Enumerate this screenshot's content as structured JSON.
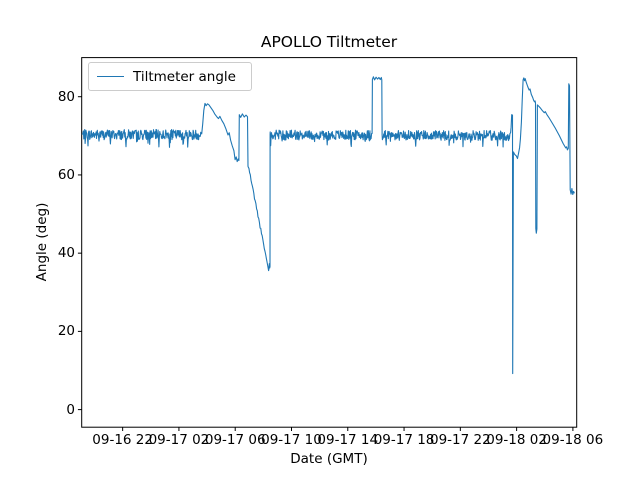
{
  "chart_data": {
    "type": "line",
    "title": "APOLLO Tiltmeter",
    "xlabel": "Date (GMT)",
    "ylabel": "Angle (deg)",
    "legend": {
      "position": "upper left",
      "entries": [
        {
          "label": "Tiltmeter angle",
          "color": "#1f77b4"
        }
      ]
    },
    "line_color": "#1f77b4",
    "background_color": "#ffffff",
    "grid": false,
    "xlim_hours": [
      0,
      35.18
    ],
    "ylim": [
      -4.5,
      90
    ],
    "yticks": [
      0,
      20,
      40,
      60,
      80
    ],
    "xticks": [
      {
        "hour": 2.91,
        "label": "09-16 22"
      },
      {
        "hour": 6.91,
        "label": "09-17 02"
      },
      {
        "hour": 10.91,
        "label": "09-17 06"
      },
      {
        "hour": 14.91,
        "label": "09-17 10"
      },
      {
        "hour": 18.91,
        "label": "09-17 14"
      },
      {
        "hour": 22.91,
        "label": "09-17 18"
      },
      {
        "hour": 26.91,
        "label": "09-17 22"
      },
      {
        "hour": 30.91,
        "label": "09-18 02"
      },
      {
        "hour": 34.91,
        "label": "09-18 06"
      }
    ],
    "series": [
      {
        "name": "Tiltmeter angle",
        "segments": [
          {
            "kind": "noise",
            "h0": 0.03,
            "h1": 8.5,
            "level": 70.3,
            "amp": 1.3,
            "seed": 7
          },
          {
            "kind": "points",
            "pts": [
              [
                8.53,
                70.5
              ],
              [
                8.6,
                73.0
              ],
              [
                8.68,
                76.5
              ],
              [
                8.76,
                78.3
              ],
              [
                8.84,
                77.7
              ],
              [
                8.94,
                78.2
              ],
              [
                9.05,
                77.9
              ],
              [
                9.18,
                77.2
              ],
              [
                9.32,
                76.5
              ],
              [
                9.45,
                75.6
              ],
              [
                9.6,
                74.9
              ],
              [
                9.72,
                74.4
              ],
              [
                9.82,
                75.0
              ],
              [
                9.95,
                74.0
              ],
              [
                10.1,
                73.1
              ],
              [
                10.25,
                71.8
              ],
              [
                10.4,
                70.2
              ],
              [
                10.48,
                70.8
              ],
              [
                10.58,
                68.9
              ],
              [
                10.7,
                67.4
              ],
              [
                10.82,
                66.2
              ],
              [
                10.9,
                63.9
              ],
              [
                10.98,
                64.6
              ],
              [
                11.05,
                63.4
              ],
              [
                11.12,
                64.1
              ],
              [
                11.17,
                63.7
              ],
              [
                11.2,
                75.4
              ],
              [
                11.3,
                74.7
              ],
              [
                11.42,
                75.6
              ],
              [
                11.55,
                74.8
              ],
              [
                11.68,
                75.3
              ],
              [
                11.78,
                74.9
              ],
              [
                11.82,
                62.2
              ],
              [
                11.86,
                61.8
              ]
            ]
          },
          {
            "kind": "ramp",
            "h0": 11.88,
            "h1": 13.28,
            "v0": 61.6,
            "v1": 35.8,
            "jitter": 0.45,
            "step": 0.05,
            "seed": 11
          },
          {
            "kind": "points",
            "pts": [
              [
                13.3,
                35.8
              ],
              [
                13.33,
                37.3
              ],
              [
                13.36,
                36.2
              ],
              [
                13.38,
                36.6
              ],
              [
                13.39,
                70.4
              ]
            ]
          },
          {
            "kind": "noise",
            "h0": 13.4,
            "h1": 20.62,
            "level": 70.2,
            "amp": 1.25,
            "seed": 23
          },
          {
            "kind": "points",
            "pts": [
              [
                20.64,
                70.6
              ],
              [
                20.66,
                84.4
              ],
              [
                20.73,
                85.1
              ],
              [
                20.82,
                84.3
              ],
              [
                20.92,
                85.0
              ],
              [
                21.02,
                84.5
              ],
              [
                21.12,
                84.9
              ],
              [
                21.22,
                84.4
              ],
              [
                21.29,
                84.9
              ],
              [
                21.33,
                84.3
              ],
              [
                21.35,
                70.3
              ]
            ]
          },
          {
            "kind": "noise",
            "h0": 21.37,
            "h1": 30.46,
            "level": 70.1,
            "amp": 1.25,
            "seed": 41
          },
          {
            "kind": "points",
            "pts": [
              [
                30.48,
                70.8
              ],
              [
                30.52,
                72.2
              ],
              [
                30.56,
                75.4
              ],
              [
                30.6,
                74.9
              ],
              [
                30.62,
                75.3
              ],
              [
                30.63,
                9.2
              ],
              [
                30.68,
                65.9
              ],
              [
                30.78,
                65.2
              ],
              [
                30.88,
                64.9
              ],
              [
                30.97,
                64.2
              ],
              [
                31.05,
                65.6
              ],
              [
                31.12,
                67.0
              ],
              [
                31.18,
                69.2
              ],
              [
                31.25,
                73.5
              ],
              [
                31.31,
                79.0
              ],
              [
                31.37,
                84.3
              ],
              [
                31.42,
                84.8
              ],
              [
                31.47,
                84.1
              ],
              [
                31.52,
                84.6
              ],
              [
                31.6,
                83.6
              ],
              [
                31.7,
                82.6
              ],
              [
                31.8,
                81.7
              ],
              [
                31.86,
                82.0
              ],
              [
                31.95,
                80.6
              ],
              [
                32.05,
                79.8
              ],
              [
                32.12,
                79.1
              ],
              [
                32.18,
                78.7
              ],
              [
                32.22,
                78.9
              ],
              [
                32.25,
                78.4
              ],
              [
                32.27,
                46.3
              ],
              [
                32.31,
                45.1
              ],
              [
                32.35,
                46.2
              ],
              [
                32.39,
                77.9
              ],
              [
                32.5,
                77.5
              ],
              [
                32.62,
                77.0
              ],
              [
                32.75,
                76.4
              ],
              [
                32.88,
                75.9
              ],
              [
                32.95,
                76.2
              ],
              [
                33.05,
                75.5
              ],
              [
                33.2,
                74.7
              ],
              [
                33.35,
                73.8
              ],
              [
                33.5,
                72.9
              ],
              [
                33.65,
                72.0
              ],
              [
                33.8,
                71.0
              ],
              [
                33.95,
                70.0
              ],
              [
                34.1,
                68.9
              ],
              [
                34.22,
                68.0
              ],
              [
                34.32,
                67.4
              ],
              [
                34.4,
                66.9
              ],
              [
                34.46,
                67.2
              ],
              [
                34.52,
                66.4
              ],
              [
                34.58,
                66.8
              ],
              [
                34.62,
                83.3
              ],
              [
                34.67,
                82.8
              ],
              [
                34.72,
                56.2
              ],
              [
                34.78,
                55.1
              ],
              [
                34.84,
                56.5
              ],
              [
                34.9,
                55.0
              ],
              [
                34.96,
                55.8
              ],
              [
                35.02,
                55.3
              ]
            ]
          }
        ]
      }
    ]
  }
}
